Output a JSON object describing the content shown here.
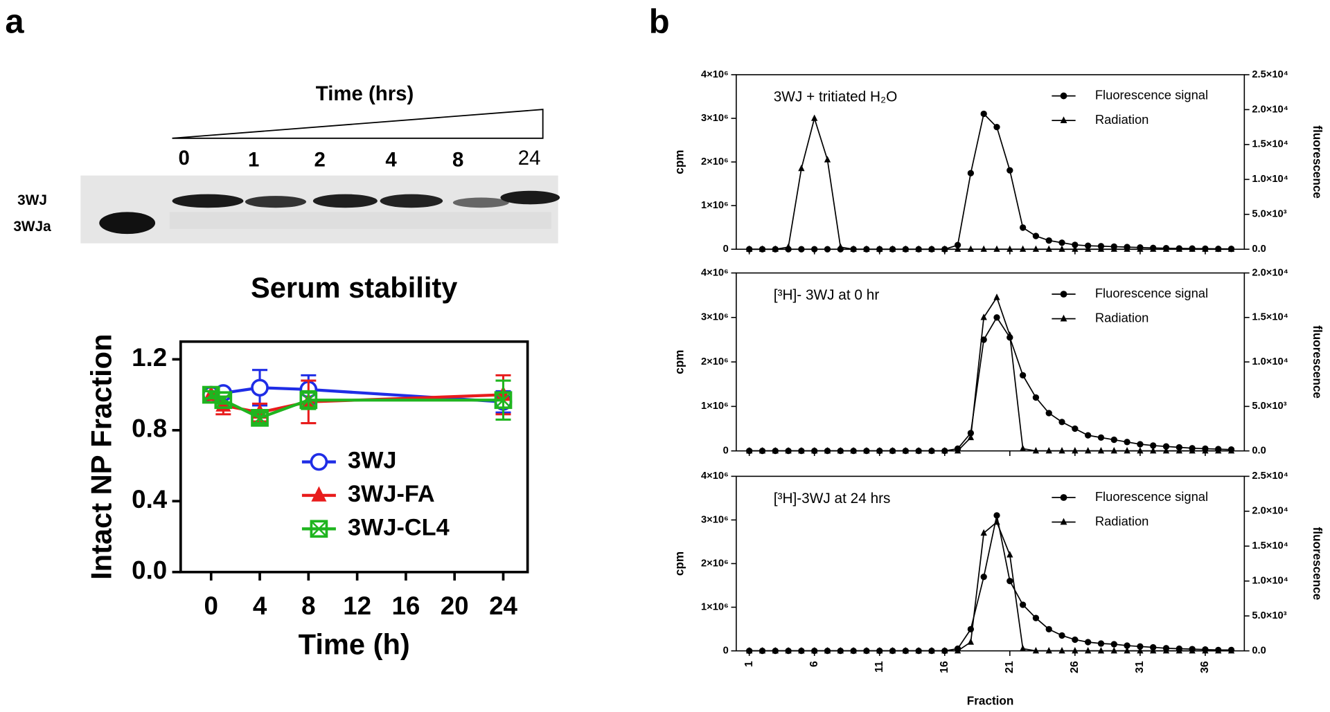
{
  "panel_labels": [
    "a",
    "b"
  ],
  "gel": {
    "title": "Time (hrs)",
    "lanes": [
      "0",
      "1",
      "2",
      "4",
      "8",
      "24"
    ],
    "bands": [
      "3WJ",
      "3WJa"
    ]
  },
  "chart_data": [
    {
      "type": "line",
      "title": "Serum stability",
      "xlabel": "Time (h)",
      "ylabel": "Intact NP Fraction",
      "x": [
        0,
        1,
        4,
        8,
        24
      ],
      "series": [
        {
          "name": "3WJ",
          "color": "#1f2de6",
          "marker": "circle-open",
          "values": [
            1.0,
            1.01,
            1.04,
            1.03,
            0.96
          ],
          "errors": [
            0.02,
            0.02,
            0.1,
            0.08,
            0.06
          ]
        },
        {
          "name": "3WJ-FA",
          "color": "#e81c1c",
          "marker": "triangle",
          "values": [
            1.0,
            0.94,
            0.9,
            0.96,
            1.0
          ],
          "errors": [
            0.02,
            0.05,
            0.05,
            0.12,
            0.11
          ]
        },
        {
          "name": "3WJ-CL4",
          "color": "#1fb51f",
          "marker": "square-x",
          "values": [
            1.0,
            0.97,
            0.87,
            0.97,
            0.97
          ],
          "errors": [
            0.02,
            0.02,
            0.03,
            0.05,
            0.11
          ]
        }
      ],
      "xlim": [
        -2.5,
        26
      ],
      "xticks": [
        0,
        4,
        8,
        12,
        16,
        20,
        24
      ],
      "ylim": [
        0,
        1.3
      ],
      "yticks": [
        {
          "value": 0,
          "label": "0.0"
        },
        {
          "value": 0.4,
          "label": "0.4"
        },
        {
          "value": 0.8,
          "label": "0.8"
        },
        {
          "value": 1.2,
          "label": "1.2"
        }
      ],
      "xtick_labels": true
    },
    {
      "type": "line",
      "annotation": "3WJ + tritiated H₂O",
      "ylabel": "cpm",
      "y2label": "fluorescence",
      "x": [
        1,
        2,
        3,
        4,
        5,
        6,
        7,
        8,
        9,
        10,
        11,
        12,
        13,
        14,
        15,
        16,
        17,
        18,
        19,
        20,
        21,
        22,
        23,
        24,
        25,
        26,
        27,
        28,
        29,
        30,
        31,
        32,
        33,
        34,
        35,
        36,
        37,
        38
      ],
      "series": [
        {
          "name": "Fluorescence signal",
          "color": "#000000",
          "marker": "circle",
          "axis": "y2",
          "values": [
            0,
            0,
            0,
            0,
            0,
            0,
            0,
            0,
            0,
            0,
            0,
            0,
            0,
            0,
            0,
            0,
            600,
            10900,
            19400,
            17500,
            11300,
            3100,
            1900,
            1250,
            940,
            625,
            500,
            440,
            375,
            310,
            250,
            190,
            150,
            120,
            100,
            80,
            60,
            50
          ]
        },
        {
          "name": "Radiation",
          "color": "#000000",
          "marker": "triangle",
          "values": [
            0,
            0,
            0,
            50000,
            1850000,
            3000000,
            2050000,
            50000,
            0,
            0,
            0,
            0,
            0,
            0,
            0,
            0,
            0,
            0,
            0,
            0,
            0,
            0,
            0,
            0,
            0,
            0,
            0,
            0,
            0,
            0,
            0,
            0,
            0,
            0,
            0,
            0,
            0,
            0
          ]
        }
      ],
      "xlim": [
        0,
        39
      ],
      "xticks": [
        1,
        6,
        11,
        16,
        21,
        26,
        31,
        36
      ],
      "xtick_labels": false,
      "ylim": [
        0,
        4000000
      ],
      "yticks": [
        0,
        {
          "value": 1000000,
          "label": "1×10⁶"
        },
        {
          "value": 2000000,
          "label": "2×10⁶"
        },
        {
          "value": 3000000,
          "label": "3×10⁶"
        },
        {
          "value": 4000000,
          "label": "4×10⁶"
        }
      ],
      "y2lim": [
        0,
        25000
      ],
      "y2ticks": [
        {
          "value": 0,
          "label": "0.0"
        },
        {
          "value": 5000,
          "label": "5.0×10³"
        },
        {
          "value": 10000,
          "label": "1.0×10⁴"
        },
        {
          "value": 15000,
          "label": "1.5×10⁴"
        },
        {
          "value": 20000,
          "label": "2.0×10⁴"
        },
        {
          "value": 25000,
          "label": "2.5×10⁴"
        }
      ]
    },
    {
      "type": "line",
      "annotation": "[³H]- 3WJ at 0 hr",
      "ylabel": "cpm",
      "y2label": "fluorescence",
      "x": [
        1,
        2,
        3,
        4,
        5,
        6,
        7,
        8,
        9,
        10,
        11,
        12,
        13,
        14,
        15,
        16,
        17,
        18,
        19,
        20,
        21,
        22,
        23,
        24,
        25,
        26,
        27,
        28,
        29,
        30,
        31,
        32,
        33,
        34,
        35,
        36,
        37,
        38
      ],
      "series": [
        {
          "name": "Fluorescence signal",
          "color": "#000000",
          "marker": "circle",
          "axis": "y2",
          "values": [
            0,
            0,
            0,
            0,
            0,
            0,
            0,
            0,
            0,
            0,
            0,
            0,
            0,
            0,
            0,
            0,
            250,
            2000,
            12500,
            15000,
            12750,
            8500,
            6000,
            4250,
            3250,
            2500,
            1750,
            1500,
            1250,
            1000,
            750,
            600,
            500,
            400,
            300,
            250,
            200,
            150
          ]
        },
        {
          "name": "Radiation",
          "color": "#000000",
          "marker": "triangle",
          "values": [
            0,
            0,
            0,
            0,
            0,
            0,
            0,
            0,
            0,
            0,
            0,
            0,
            0,
            0,
            0,
            0,
            0,
            300000,
            3000000,
            3450000,
            2600000,
            50000,
            0,
            0,
            0,
            0,
            0,
            0,
            0,
            0,
            0,
            0,
            0,
            0,
            0,
            0,
            0,
            0
          ]
        }
      ],
      "xlim": [
        0,
        39
      ],
      "xticks": [
        1,
        6,
        11,
        16,
        21,
        26,
        31,
        36
      ],
      "xtick_labels": false,
      "ylim": [
        0,
        4000000
      ],
      "yticks": [
        0,
        {
          "value": 1000000,
          "label": "1×10⁶"
        },
        {
          "value": 2000000,
          "label": "2×10⁶"
        },
        {
          "value": 3000000,
          "label": "3×10⁶"
        },
        {
          "value": 4000000,
          "label": "4×10⁶"
        }
      ],
      "y2lim": [
        0,
        20000
      ],
      "y2ticks": [
        {
          "value": 0,
          "label": "0.0"
        },
        {
          "value": 5000,
          "label": "5.0×10³"
        },
        {
          "value": 10000,
          "label": "1.0×10⁴"
        },
        {
          "value": 15000,
          "label": "1.5×10⁴"
        },
        {
          "value": 20000,
          "label": "2.0×10⁴"
        }
      ]
    },
    {
      "type": "line",
      "annotation": "[³H]-3WJ at 24 hrs",
      "ylabel": "cpm",
      "y2label": "fluorescence",
      "xlabel": "Fraction",
      "x": [
        1,
        2,
        3,
        4,
        5,
        6,
        7,
        8,
        9,
        10,
        11,
        12,
        13,
        14,
        15,
        16,
        17,
        18,
        19,
        20,
        21,
        22,
        23,
        24,
        25,
        26,
        27,
        28,
        29,
        30,
        31,
        32,
        33,
        34,
        35,
        36,
        37,
        38
      ],
      "series": [
        {
          "name": "Fluorescence signal",
          "color": "#000000",
          "marker": "circle",
          "axis": "y2",
          "values": [
            0,
            0,
            0,
            0,
            0,
            0,
            0,
            0,
            0,
            0,
            0,
            0,
            0,
            0,
            0,
            0,
            310,
            3100,
            10600,
            19400,
            10000,
            6600,
            4700,
            3100,
            2200,
            1600,
            1250,
            1050,
            950,
            750,
            625,
            500,
            375,
            310,
            250,
            190,
            125,
            125
          ]
        },
        {
          "name": "Radiation",
          "color": "#000000",
          "marker": "triangle",
          "values": [
            0,
            0,
            0,
            0,
            0,
            0,
            0,
            0,
            0,
            0,
            0,
            0,
            0,
            0,
            0,
            0,
            0,
            200000,
            2700000,
            2950000,
            2200000,
            50000,
            0,
            0,
            0,
            0,
            0,
            0,
            0,
            0,
            0,
            0,
            0,
            0,
            0,
            0,
            0,
            0
          ]
        }
      ],
      "xlim": [
        0,
        39
      ],
      "xticks": [
        1,
        6,
        11,
        16,
        21,
        26,
        31,
        36
      ],
      "xtick_labels": true,
      "ylim": [
        0,
        4000000
      ],
      "yticks": [
        0,
        {
          "value": 1000000,
          "label": "1×10⁶"
        },
        {
          "value": 2000000,
          "label": "2×10⁶"
        },
        {
          "value": 3000000,
          "label": "3×10⁶"
        },
        {
          "value": 4000000,
          "label": "4×10⁶"
        }
      ],
      "y2lim": [
        0,
        25000
      ],
      "y2ticks": [
        {
          "value": 0,
          "label": "0.0"
        },
        {
          "value": 5000,
          "label": "5.0×10³"
        },
        {
          "value": 10000,
          "label": "1.0×10⁴"
        },
        {
          "value": 15000,
          "label": "1.5×10⁴"
        },
        {
          "value": 20000,
          "label": "2.0×10⁴"
        },
        {
          "value": 25000,
          "label": "2.5×10⁴"
        }
      ]
    }
  ]
}
